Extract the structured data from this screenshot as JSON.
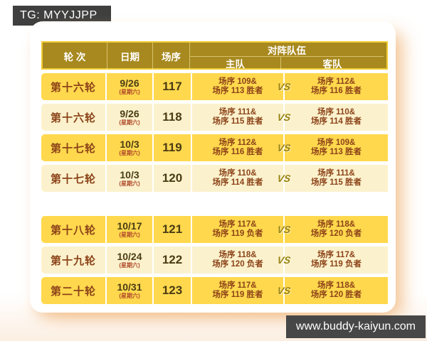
{
  "badges": {
    "tg": "TG: MYYJJPP",
    "site": "www.buddy-kaiyun.com"
  },
  "table": {
    "headers": {
      "round": "轮 次",
      "date": "日期",
      "seq": "场序",
      "matchup": "对阵队伍",
      "home": "主队",
      "away": "客队"
    },
    "vs_label": "VS",
    "rows": [
      {
        "round": "第十六轮",
        "date": "9/26",
        "weekday": "(星期六)",
        "seq": "117",
        "home1": "场序 109&",
        "home2": "场序 113 胜者",
        "away1": "场序 112&",
        "away2": "场序 116 胜者"
      },
      {
        "round": "第十六轮",
        "date": "9/26",
        "weekday": "(星期六)",
        "seq": "118",
        "home1": "场序 111&",
        "home2": "场序 115 胜者",
        "away1": "场序 110&",
        "away2": "场序 114 胜者"
      },
      {
        "round": "第十七轮",
        "date": "10/3",
        "weekday": "(星期六)",
        "seq": "119",
        "home1": "场序 112&",
        "home2": "场序 116 胜者",
        "away1": "场序 109&",
        "away2": "场序 113 胜者"
      },
      {
        "round": "第十七轮",
        "date": "10/3",
        "weekday": "(星期六)",
        "seq": "120",
        "home1": "场序 110&",
        "home2": "场序 114 胜者",
        "away1": "场序 111&",
        "away2": "场序 115 胜者"
      },
      {
        "round": "第十八轮",
        "date": "10/17",
        "weekday": "(星期六)",
        "seq": "121",
        "home1": "场序 117&",
        "home2": "场序 119 负者",
        "away1": "场序 118&",
        "away2": "场序 120 负者"
      },
      {
        "round": "第十九轮",
        "date": "10/24",
        "weekday": "(星期六)",
        "seq": "122",
        "home1": "场序 118&",
        "home2": "场序 120 负者",
        "away1": "场序 117&",
        "away2": "场序 119 负者"
      },
      {
        "round": "第二十轮",
        "date": "10/31",
        "weekday": "(星期六)",
        "seq": "123",
        "home1": "场序 117&",
        "home2": "场序 119 胜者",
        "away1": "场序 118&",
        "away2": "场序 120 胜者"
      }
    ]
  },
  "colors": {
    "badge_bg": "#3f3f3f",
    "header_bg": "#a8891f",
    "header_border": "#f0cc35",
    "row_yellow": "#ffd84d",
    "row_cream": "#fbf2cd",
    "text_brown": "#8c4319",
    "text_dark": "#4a3c14",
    "weekday_red": "#b04a2a",
    "vs_olive": "#998312",
    "shadow_peach": "#f2be8a"
  }
}
